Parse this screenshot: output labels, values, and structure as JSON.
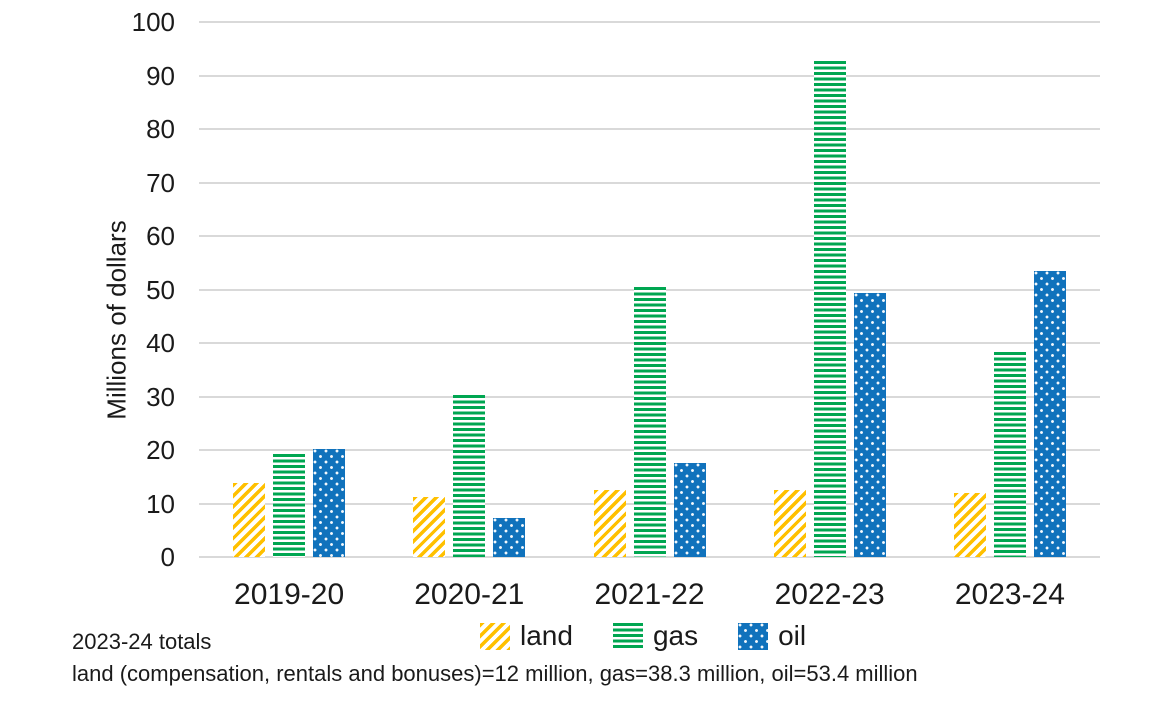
{
  "chart_data": {
    "type": "bar",
    "title": "",
    "ylabel": "Millions of dollars",
    "xlabel": "",
    "ylim": [
      0,
      100
    ],
    "ytick_step": 10,
    "grid": true,
    "legend_position": "bottom",
    "categories": [
      "2019-20",
      "2020-21",
      "2021-22",
      "2022-23",
      "2023-24"
    ],
    "series": [
      {
        "name": "land",
        "color": "#FFC000",
        "pattern": "diagonal-stripes",
        "values": [
          13.8,
          11.2,
          12.6,
          12.5,
          12.0
        ]
      },
      {
        "name": "gas",
        "color": "#00A651",
        "pattern": "horizontal-stripes",
        "values": [
          19.3,
          30.2,
          50.4,
          92.8,
          38.3
        ]
      },
      {
        "name": "oil",
        "color": "#1072BC",
        "pattern": "white-dots",
        "values": [
          20.1,
          7.2,
          17.5,
          49.3,
          53.4
        ]
      }
    ],
    "gridline_color": "#D9D9D9"
  },
  "footnote": {
    "line1": "2023-24 totals",
    "line2": "land (compensation, rentals and bonuses)=12 million, gas=38.3 million, oil=53.4 million"
  }
}
